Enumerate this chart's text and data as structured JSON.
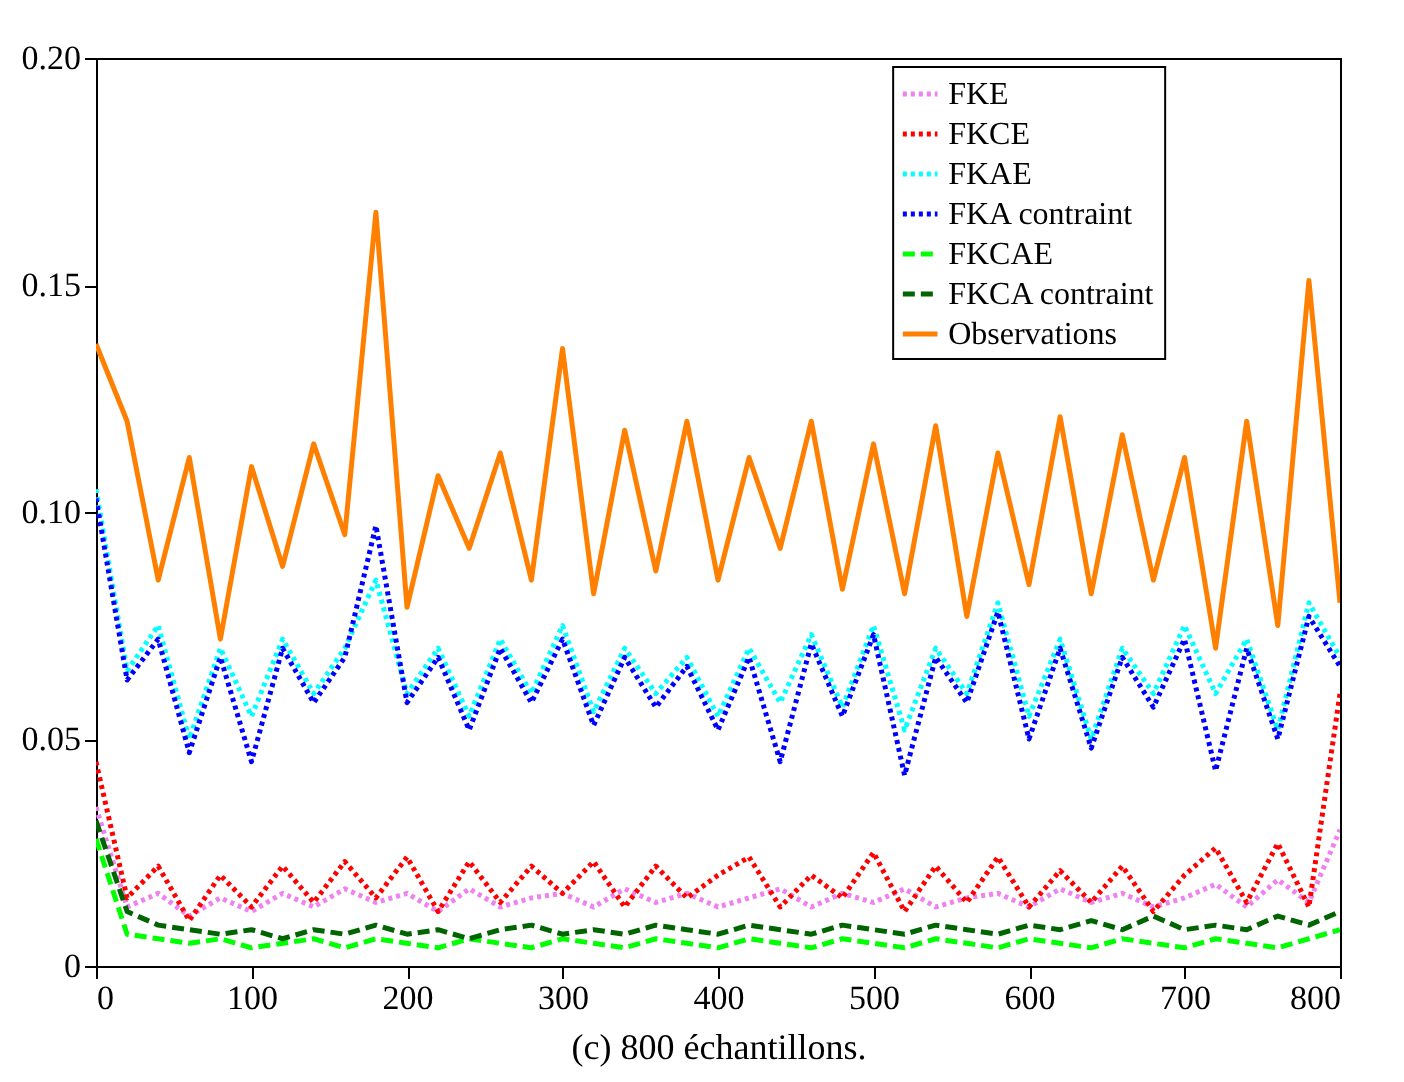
{
  "chart_data": {
    "type": "line",
    "xlabel": "(c) 800 échantillons.",
    "x": [
      0,
      20,
      40,
      60,
      80,
      100,
      120,
      140,
      160,
      180,
      200,
      220,
      240,
      260,
      280,
      300,
      320,
      340,
      360,
      380,
      400,
      420,
      440,
      460,
      480,
      500,
      520,
      540,
      560,
      580,
      600,
      620,
      640,
      660,
      680,
      700,
      720,
      740,
      760,
      780,
      800
    ],
    "xlim": [
      0,
      800
    ],
    "xticks": [
      0,
      100,
      200,
      300,
      400,
      500,
      600,
      700,
      800
    ],
    "ylim": [
      0,
      0.2
    ],
    "yticks": [
      0,
      0.05,
      {
        "value": 0.1,
        "label": "0.10"
      },
      0.15,
      {
        "value": 0.2,
        "label": "0.20"
      }
    ],
    "grid": false,
    "legend": "top right",
    "marker": "none",
    "series": [
      {
        "name": "FKE",
        "color": "#ee82ee",
        "line_style": "dotted",
        "values": [
          0.035,
          0.013,
          0.016,
          0.011,
          0.015,
          0.012,
          0.016,
          0.013,
          0.017,
          0.014,
          0.016,
          0.012,
          0.017,
          0.013,
          0.015,
          0.016,
          0.013,
          0.017,
          0.014,
          0.016,
          0.013,
          0.015,
          0.017,
          0.013,
          0.016,
          0.014,
          0.017,
          0.013,
          0.015,
          0.016,
          0.013,
          0.017,
          0.014,
          0.016,
          0.013,
          0.015,
          0.018,
          0.013,
          0.019,
          0.014,
          0.03
        ]
      },
      {
        "name": "FKCE",
        "color": "#ff0000",
        "line_style": "dotted",
        "values": [
          0.045,
          0.015,
          0.022,
          0.01,
          0.02,
          0.013,
          0.022,
          0.014,
          0.023,
          0.015,
          0.024,
          0.012,
          0.023,
          0.014,
          0.022,
          0.016,
          0.023,
          0.013,
          0.022,
          0.015,
          0.02,
          0.024,
          0.013,
          0.02,
          0.015,
          0.025,
          0.012,
          0.022,
          0.014,
          0.024,
          0.013,
          0.021,
          0.014,
          0.022,
          0.012,
          0.02,
          0.026,
          0.014,
          0.027,
          0.013,
          0.06
        ]
      },
      {
        "name": "FKAE",
        "color": "#00ffff",
        "line_style": "dotted",
        "values": [
          0.105,
          0.065,
          0.075,
          0.05,
          0.07,
          0.055,
          0.072,
          0.06,
          0.07,
          0.085,
          0.06,
          0.07,
          0.055,
          0.072,
          0.06,
          0.075,
          0.056,
          0.07,
          0.06,
          0.068,
          0.055,
          0.07,
          0.058,
          0.073,
          0.057,
          0.075,
          0.052,
          0.07,
          0.06,
          0.08,
          0.055,
          0.072,
          0.05,
          0.07,
          0.06,
          0.075,
          0.06,
          0.072,
          0.052,
          0.08,
          0.068
        ]
      },
      {
        "name": "FKA contraint",
        "color": "#0000ff",
        "line_style": "dotted",
        "values": [
          0.103,
          0.063,
          0.072,
          0.047,
          0.068,
          0.045,
          0.07,
          0.058,
          0.068,
          0.097,
          0.058,
          0.068,
          0.052,
          0.07,
          0.058,
          0.072,
          0.053,
          0.068,
          0.057,
          0.066,
          0.052,
          0.068,
          0.045,
          0.071,
          0.055,
          0.073,
          0.042,
          0.068,
          0.058,
          0.078,
          0.05,
          0.07,
          0.048,
          0.068,
          0.057,
          0.072,
          0.043,
          0.07,
          0.05,
          0.077,
          0.066
        ]
      },
      {
        "name": "FKCAE",
        "color": "#00ff00",
        "line_style": "dashed",
        "values": [
          0.028,
          0.007,
          0.006,
          0.005,
          0.006,
          0.004,
          0.005,
          0.006,
          0.004,
          0.006,
          0.005,
          0.004,
          0.006,
          0.005,
          0.004,
          0.006,
          0.005,
          0.004,
          0.006,
          0.005,
          0.004,
          0.006,
          0.005,
          0.004,
          0.006,
          0.005,
          0.004,
          0.006,
          0.005,
          0.004,
          0.006,
          0.005,
          0.004,
          0.006,
          0.005,
          0.004,
          0.006,
          0.005,
          0.004,
          0.006,
          0.008
        ]
      },
      {
        "name": "FKCA contraint",
        "color": "#006400",
        "line_style": "dashed",
        "values": [
          0.032,
          0.012,
          0.009,
          0.008,
          0.007,
          0.008,
          0.006,
          0.008,
          0.007,
          0.009,
          0.007,
          0.008,
          0.006,
          0.008,
          0.009,
          0.007,
          0.008,
          0.007,
          0.009,
          0.008,
          0.007,
          0.009,
          0.008,
          0.007,
          0.009,
          0.008,
          0.007,
          0.009,
          0.008,
          0.007,
          0.009,
          0.008,
          0.01,
          0.008,
          0.011,
          0.008,
          0.009,
          0.008,
          0.011,
          0.009,
          0.012
        ]
      },
      {
        "name": "Observations",
        "color": "#ff8000",
        "line_style": "solid",
        "values": [
          0.137,
          0.12,
          0.085,
          0.112,
          0.072,
          0.11,
          0.088,
          0.115,
          0.095,
          0.166,
          0.079,
          0.108,
          0.092,
          0.113,
          0.085,
          0.136,
          0.082,
          0.118,
          0.087,
          0.12,
          0.085,
          0.112,
          0.092,
          0.12,
          0.083,
          0.115,
          0.082,
          0.119,
          0.077,
          0.113,
          0.084,
          0.121,
          0.082,
          0.117,
          0.085,
          0.112,
          0.07,
          0.12,
          0.075,
          0.151,
          0.08
        ]
      }
    ]
  }
}
